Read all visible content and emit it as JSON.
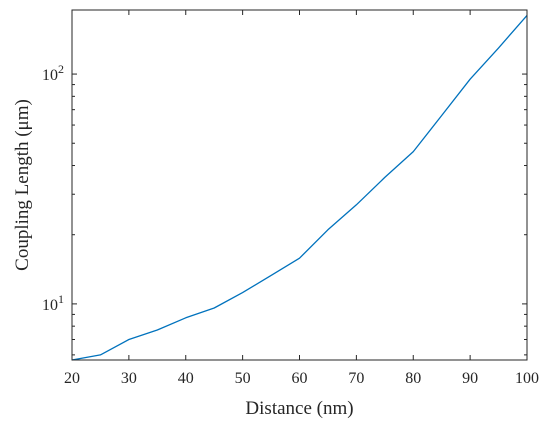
{
  "chart_data": {
    "type": "line",
    "xlabel": "Distance (nm)",
    "ylabel": "Coupling Length (μm)",
    "xlim": [
      20,
      100
    ],
    "ylim": [
      5.7,
      190
    ],
    "y_scale": "log",
    "grid": false,
    "legend": "none",
    "x_ticks": [
      20,
      30,
      40,
      50,
      60,
      70,
      80,
      90,
      100
    ],
    "x_tick_labels": [
      "20",
      "30",
      "40",
      "50",
      "60",
      "70",
      "80",
      "90",
      "100"
    ],
    "y_ticks": [
      {
        "value": 10,
        "base": "10",
        "exp": "1"
      },
      {
        "value": 100,
        "base": "10",
        "exp": "2"
      }
    ],
    "series": [
      {
        "color": "#0072bd",
        "x": [
          20,
          25,
          30,
          35,
          40,
          45,
          50,
          55,
          60,
          65,
          70,
          75,
          80,
          85,
          90,
          95,
          100
        ],
        "y": [
          5.7,
          6.0,
          7.0,
          7.7,
          8.7,
          9.6,
          11.2,
          13.3,
          15.8,
          21,
          27,
          35.5,
          46,
          66,
          95,
          130,
          180
        ]
      }
    ]
  }
}
